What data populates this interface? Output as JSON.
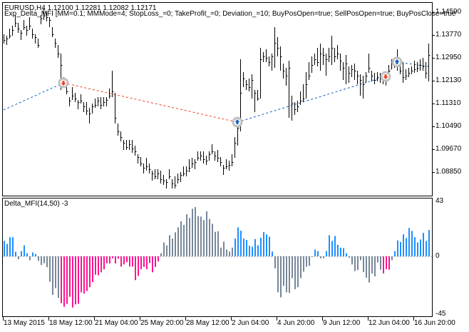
{
  "header": {
    "symbol_line": "EURUSD,H4  1.12100 1.12281 1.12082 1.12171",
    "expert_line": "Exp_Delta_MFI [MM=0.1; MMMode=4; StopLoss_=0; TakeProfit_=0; Deviation_=10; BuyPosOpen=true; SellPosOpen=true; BuyPosClose=true"
  },
  "indicator": {
    "label": "Delta_MFI(14,50) -3",
    "axis_labels": [
      "43",
      "0",
      "-45"
    ],
    "ylim": [
      -45,
      43
    ]
  },
  "colors": {
    "b": "#1E90FF",
    "g": "#778899",
    "p": "#FF1493",
    "bars": "#000000",
    "buy_line": "#1060C0",
    "sell_line": "#F04020",
    "marker_ring": "#C0C0C0",
    "zero_line": "#C0C0C0"
  },
  "price_axis": {
    "labels": [
      "1.14590",
      "1.13770",
      "1.12950",
      "1.12130",
      "1.11310",
      "1.10490",
      "1.09670",
      "1.08850"
    ]
  },
  "time_axis": {
    "labels": [
      "13 May 2015",
      "18 May 12:00",
      "21 May 04:00",
      "25 May 20:00",
      "28 May 12:00",
      "2 Jun 04:00",
      "4 Jun 20:00",
      "9 Jun 12:00",
      "12 Jun 04:00",
      "16 Jun 20:00"
    ],
    "label_every_bars": 16
  },
  "chart_data": [
    {
      "type": "ohlc-bars",
      "title": "EURUSD,H4",
      "ylim": [
        1.082,
        1.148
      ],
      "bars_hlc": [
        [
          1.138,
          1.1345,
          1.136
        ],
        [
          1.1375,
          1.134,
          1.1365
        ],
        [
          1.14,
          1.1365,
          1.1375
        ],
        [
          1.141,
          1.1375,
          1.1395
        ],
        [
          1.145,
          1.1405,
          1.142
        ],
        [
          1.142,
          1.1385,
          1.14
        ],
        [
          1.1395,
          1.136,
          1.1385
        ],
        [
          1.143,
          1.1395,
          1.1405
        ],
        [
          1.141,
          1.1375,
          1.1395
        ],
        [
          1.144,
          1.1395,
          1.141
        ],
        [
          1.14,
          1.1365,
          1.138
        ],
        [
          1.138,
          1.1345,
          1.137
        ],
        [
          1.1365,
          1.133,
          1.134
        ],
        [
          1.145,
          1.1415,
          1.1435
        ],
        [
          1.1475,
          1.143,
          1.1445
        ],
        [
          1.146,
          1.1425,
          1.144
        ],
        [
          1.144,
          1.1405,
          1.143
        ],
        [
          1.1405,
          1.137,
          1.138
        ],
        [
          1.1365,
          1.133,
          1.135
        ],
        [
          1.134,
          1.1295,
          1.131
        ],
        [
          1.131,
          1.118,
          1.127
        ],
        [
          1.1225,
          1.119,
          1.1215
        ],
        [
          1.12,
          1.1165,
          1.1175
        ],
        [
          1.1155,
          1.112,
          1.114
        ],
        [
          1.119,
          1.1145,
          1.116
        ],
        [
          1.117,
          1.1135,
          1.115
        ],
        [
          1.1145,
          1.111,
          1.1135
        ],
        [
          1.1165,
          1.113,
          1.114
        ],
        [
          1.1135,
          1.11,
          1.112
        ],
        [
          1.1135,
          1.109,
          1.1105
        ],
        [
          1.1115,
          1.106,
          1.1095
        ],
        [
          1.113,
          1.1095,
          1.112
        ],
        [
          1.115,
          1.1115,
          1.1125
        ],
        [
          1.1155,
          1.112,
          1.114
        ],
        [
          1.1155,
          1.111,
          1.1125
        ],
        [
          1.1155,
          1.112,
          1.1135
        ],
        [
          1.1155,
          1.112,
          1.1145
        ],
        [
          1.1185,
          1.115,
          1.116
        ],
        [
          1.125,
          1.1155,
          1.1175
        ],
        [
          1.117,
          1.106,
          1.108
        ],
        [
          1.106,
          1.1015,
          1.103
        ],
        [
          1.103,
          1.0995,
          1.101
        ],
        [
          1.1,
          1.0965,
          1.099
        ],
        [
          1.1,
          1.0965,
          1.0975
        ],
        [
          1.1,
          1.0965,
          1.0985
        ],
        [
          1.1,
          1.0955,
          1.097
        ],
        [
          1.098,
          1.0945,
          1.096
        ],
        [
          1.095,
          1.0915,
          1.094
        ],
        [
          1.094,
          1.0905,
          1.0915
        ],
        [
          1.0915,
          1.088,
          1.09
        ],
        [
          1.0935,
          1.089,
          1.0905
        ],
        [
          1.0915,
          1.088,
          1.0895
        ],
        [
          1.089,
          1.0855,
          1.088
        ],
        [
          1.0895,
          1.086,
          1.087
        ],
        [
          1.0895,
          1.086,
          1.088
        ],
        [
          1.089,
          1.0845,
          1.086
        ],
        [
          1.0875,
          1.084,
          1.0855
        ],
        [
          1.086,
          1.0825,
          1.085
        ],
        [
          1.0895,
          1.086,
          1.087
        ],
        [
          1.086,
          1.0825,
          1.0845
        ],
        [
          1.087,
          1.0825,
          1.084
        ],
        [
          1.088,
          1.0845,
          1.086
        ],
        [
          1.0885,
          1.085,
          1.0875
        ],
        [
          1.0905,
          1.087,
          1.088
        ],
        [
          1.0905,
          1.087,
          1.089
        ],
        [
          1.093,
          1.0885,
          1.09
        ],
        [
          1.0935,
          1.09,
          1.0915
        ],
        [
          1.093,
          1.0895,
          1.092
        ],
        [
          1.096,
          1.0925,
          1.0935
        ],
        [
          1.096,
          1.0925,
          1.0945
        ],
        [
          1.096,
          1.0915,
          1.093
        ],
        [
          1.0945,
          1.091,
          1.0925
        ],
        [
          1.096,
          1.0925,
          1.095
        ],
        [
          1.0985,
          1.095,
          1.096
        ],
        [
          1.096,
          1.0925,
          1.0945
        ],
        [
          1.0965,
          1.092,
          1.0935
        ],
        [
          1.094,
          1.0905,
          1.092
        ],
        [
          1.091,
          1.0875,
          1.09
        ],
        [
          1.093,
          1.0895,
          1.0905
        ],
        [
          1.0925,
          1.089,
          1.091
        ],
        [
          1.095,
          1.0905,
          1.092
        ],
        [
          1.101,
          1.0935,
          1.099
        ],
        [
          1.108,
          1.098,
          1.1045
        ],
        [
          1.129,
          1.103,
          1.117
        ],
        [
          1.1245,
          1.119,
          1.122
        ],
        [
          1.1215,
          1.118,
          1.12
        ],
        [
          1.122,
          1.1175,
          1.119
        ],
        [
          1.1235,
          1.115,
          1.1215
        ],
        [
          1.118,
          1.11,
          1.117
        ],
        [
          1.118,
          1.114,
          1.115
        ],
        [
          1.133,
          1.115,
          1.129
        ],
        [
          1.1315,
          1.128,
          1.13
        ],
        [
          1.1325,
          1.128,
          1.1295
        ],
        [
          1.13,
          1.1265,
          1.128
        ],
        [
          1.131,
          1.125,
          1.13
        ],
        [
          1.1405,
          1.126,
          1.135
        ],
        [
          1.137,
          1.13,
          1.133
        ],
        [
          1.1335,
          1.125,
          1.13
        ],
        [
          1.1275,
          1.122,
          1.125
        ],
        [
          1.126,
          1.1195,
          1.123
        ],
        [
          1.1285,
          1.108,
          1.126
        ],
        [
          1.116,
          1.107,
          1.113
        ],
        [
          1.1135,
          1.109,
          1.111
        ],
        [
          1.114,
          1.11,
          1.112
        ],
        [
          1.1175,
          1.1125,
          1.114
        ],
        [
          1.12,
          1.1135,
          1.115
        ],
        [
          1.1245,
          1.115,
          1.12
        ],
        [
          1.128,
          1.1215,
          1.123
        ],
        [
          1.13,
          1.124,
          1.127
        ],
        [
          1.131,
          1.127,
          1.129
        ],
        [
          1.133,
          1.1265,
          1.128
        ],
        [
          1.1345,
          1.125,
          1.131
        ],
        [
          1.133,
          1.127,
          1.1305
        ],
        [
          1.131,
          1.123,
          1.129
        ],
        [
          1.133,
          1.128,
          1.13
        ],
        [
          1.1375,
          1.127,
          1.133
        ],
        [
          1.133,
          1.128,
          1.13
        ],
        [
          1.134,
          1.129,
          1.131
        ],
        [
          1.131,
          1.125,
          1.1285
        ],
        [
          1.128,
          1.1215,
          1.126
        ],
        [
          1.1305,
          1.12,
          1.1275
        ],
        [
          1.1265,
          1.1205,
          1.124
        ],
        [
          1.127,
          1.1225,
          1.1255
        ],
        [
          1.1275,
          1.1215,
          1.125
        ],
        [
          1.125,
          1.12,
          1.123
        ],
        [
          1.1235,
          1.116,
          1.1215
        ],
        [
          1.123,
          1.115,
          1.12
        ],
        [
          1.1245,
          1.1205,
          1.123
        ],
        [
          1.131,
          1.124,
          1.126
        ],
        [
          1.125,
          1.121,
          1.123
        ],
        [
          1.124,
          1.12,
          1.1215
        ],
        [
          1.1245,
          1.121,
          1.1225
        ],
        [
          1.124,
          1.1205,
          1.123
        ],
        [
          1.1245,
          1.12,
          1.122
        ],
        [
          1.1235,
          1.1195,
          1.1215
        ],
        [
          1.127,
          1.122,
          1.125
        ],
        [
          1.129,
          1.1255,
          1.1275
        ],
        [
          1.1295,
          1.126,
          1.128
        ],
        [
          1.1325,
          1.125,
          1.127
        ],
        [
          1.1275,
          1.1235,
          1.125
        ],
        [
          1.128,
          1.1205,
          1.1225
        ],
        [
          1.1255,
          1.1215,
          1.123
        ],
        [
          1.126,
          1.1225,
          1.124
        ],
        [
          1.1265,
          1.1235,
          1.125
        ],
        [
          1.1285,
          1.124,
          1.1255
        ],
        [
          1.128,
          1.1245,
          1.126
        ],
        [
          1.129,
          1.125,
          1.127
        ],
        [
          1.1295,
          1.125,
          1.1265
        ],
        [
          1.128,
          1.122,
          1.124
        ],
        [
          1.1345,
          1.121,
          1.1305
        ]
      ],
      "trades": [
        {
          "type": "sell",
          "bar": 21,
          "price": 1.1205
        },
        {
          "type": "buy",
          "bar": 82,
          "price": 1.1064
        },
        {
          "type": "sell",
          "bar": 134,
          "price": 1.1228
        },
        {
          "type": "buy",
          "bar": 138,
          "price": 1.128
        }
      ],
      "trade_lines": [
        {
          "kind": "buy",
          "from": [
            0,
            1.1108
          ],
          "to": [
            21,
            1.1205
          ]
        },
        {
          "kind": "sell",
          "from": [
            21,
            1.1205
          ],
          "to": [
            82,
            1.1064
          ]
        },
        {
          "kind": "buy",
          "from": [
            82,
            1.1064
          ],
          "to": [
            134,
            1.1228
          ]
        },
        {
          "kind": "sell",
          "from": [
            134,
            1.1228
          ],
          "to": [
            138,
            1.128
          ]
        },
        {
          "kind": "buy",
          "from": [
            138,
            1.128
          ],
          "to": [
            149,
            1.1264
          ]
        }
      ]
    },
    {
      "type": "bar",
      "title": "Delta_MFI(14,50) -3",
      "ylim": [
        -45,
        43
      ],
      "values": [
        11.9,
        9.6,
        14.8,
        14.8,
        3.5,
        -2.2,
        4,
        8.5,
        2.4,
        -3,
        3,
        1.8,
        -3.5,
        -6.8,
        -5.4,
        -8.5,
        -19.8,
        -30,
        -24.8,
        -32.4,
        -36.5,
        -39.3,
        -37,
        -31.5,
        -39.8,
        -37.4,
        -36.9,
        -28,
        -29,
        -27,
        -24,
        -20,
        -14.3,
        -14.8,
        -12.4,
        -10.2,
        -5.4,
        -5.6,
        -1.5,
        -5.6,
        -1.9,
        -8,
        -6.3,
        -4.6,
        -8,
        -8,
        -18.5,
        -15.2,
        -10,
        -8.3,
        -10,
        -5.2,
        -12.4,
        -8.3,
        -4,
        2.4,
        10.7,
        8.5,
        16.3,
        13.7,
        18.5,
        22.4,
        27,
        24.3,
        32.4,
        29.6,
        36.7,
        38,
        31,
        30.7,
        28,
        34.8,
        28.9,
        25.2,
        18.9,
        19.4,
        6.7,
        11.3,
        5.2,
        3.7,
        6.7,
        13.7,
        22.4,
        19.8,
        13.7,
        12.6,
        8.1,
        7.4,
        13.3,
        8.5,
        14.3,
        18.7,
        16.9,
        15.2,
        3.7,
        -9.3,
        -28,
        -31.9,
        -23,
        -28,
        -28.5,
        -17,
        -25.6,
        -24,
        -17,
        -11.9,
        -8.1,
        -7.4,
        -0.4,
        5.2,
        4,
        -1.5,
        -1.5,
        4,
        16.3,
        11.9,
        15.7,
        8.9,
        6.7,
        6.3,
        2.4,
        -1.1,
        -6.3,
        -11.5,
        -10.7,
        -3.1,
        -12.2,
        -16.7,
        -20.4,
        -13.3,
        -15.6,
        -4.8,
        -10.4,
        -13.3,
        -10,
        -10.4,
        -3,
        4,
        12.2,
        11.1,
        17,
        14.1,
        21.9,
        19.6,
        14.8,
        10.7,
        13,
        18.1,
        11.9,
        20.4
      ],
      "color_runs": [
        [
          "b",
          5
        ],
        [
          "g",
          1
        ],
        [
          "b",
          3
        ],
        [
          "g",
          1
        ],
        [
          "b",
          2
        ],
        [
          "g",
          8
        ],
        [
          "p",
          35
        ],
        [
          "g",
          26
        ],
        [
          "b",
          14
        ],
        [
          "g",
          14
        ],
        [
          "b",
          2
        ],
        [
          "g",
          2
        ],
        [
          "b",
          8
        ],
        [
          "g",
          12
        ],
        [
          "p",
          3
        ],
        [
          "g",
          1
        ],
        [
          "b",
          13
        ]
      ]
    }
  ]
}
